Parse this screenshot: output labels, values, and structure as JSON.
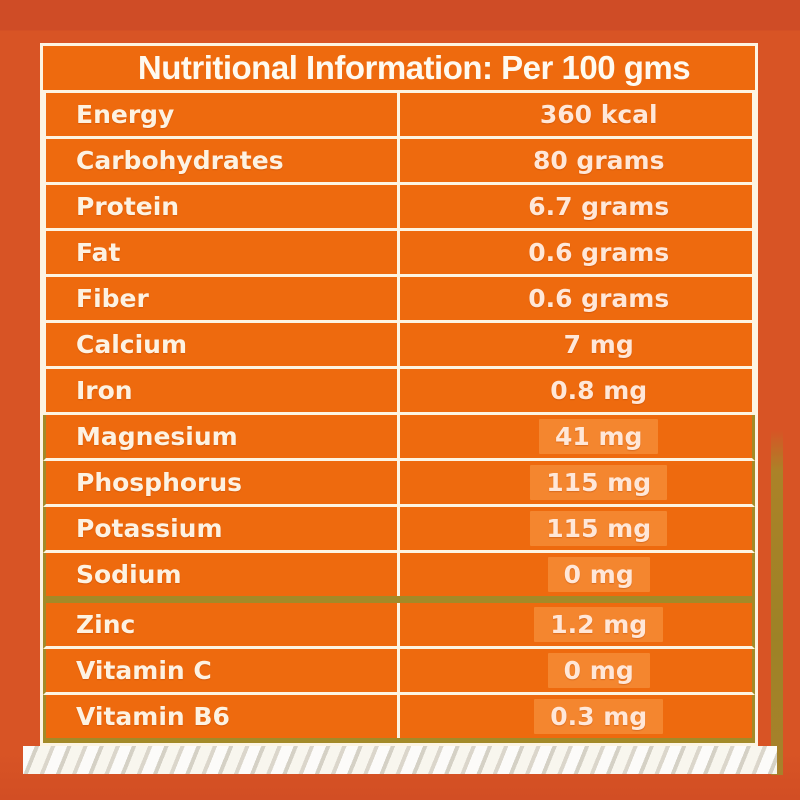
{
  "title": "Nutritional Information: Per 100 gms",
  "nutrients": [
    {
      "name": "Energy",
      "value": "360 kcal"
    },
    {
      "name": "Carbohydrates",
      "value": "80 grams"
    },
    {
      "name": "Protein",
      "value": "6.7 grams"
    },
    {
      "name": "Fat",
      "value": "0.6 grams"
    },
    {
      "name": "Fiber",
      "value": "0.6 grams"
    },
    {
      "name": "Calcium",
      "value": "7 mg"
    },
    {
      "name": "Iron",
      "value": "0.8 mg"
    },
    {
      "name": "Magnesium",
      "value": "41 mg"
    },
    {
      "name": "Phosphorus",
      "value": "115 mg"
    },
    {
      "name": "Potassium",
      "value": "115 mg"
    },
    {
      "name": "Sodium",
      "value": "0 mg"
    },
    {
      "name": "Zinc",
      "value": "1.2 mg"
    },
    {
      "name": "Vitamin C",
      "value": "0 mg"
    },
    {
      "name": "Vitamin B6",
      "value": "0.3 mg"
    }
  ],
  "colors": {
    "frame": "#d85425",
    "cell": "#ee6a0e",
    "border_light": "#fdf4e2",
    "border_olive": "#a38a28"
  }
}
